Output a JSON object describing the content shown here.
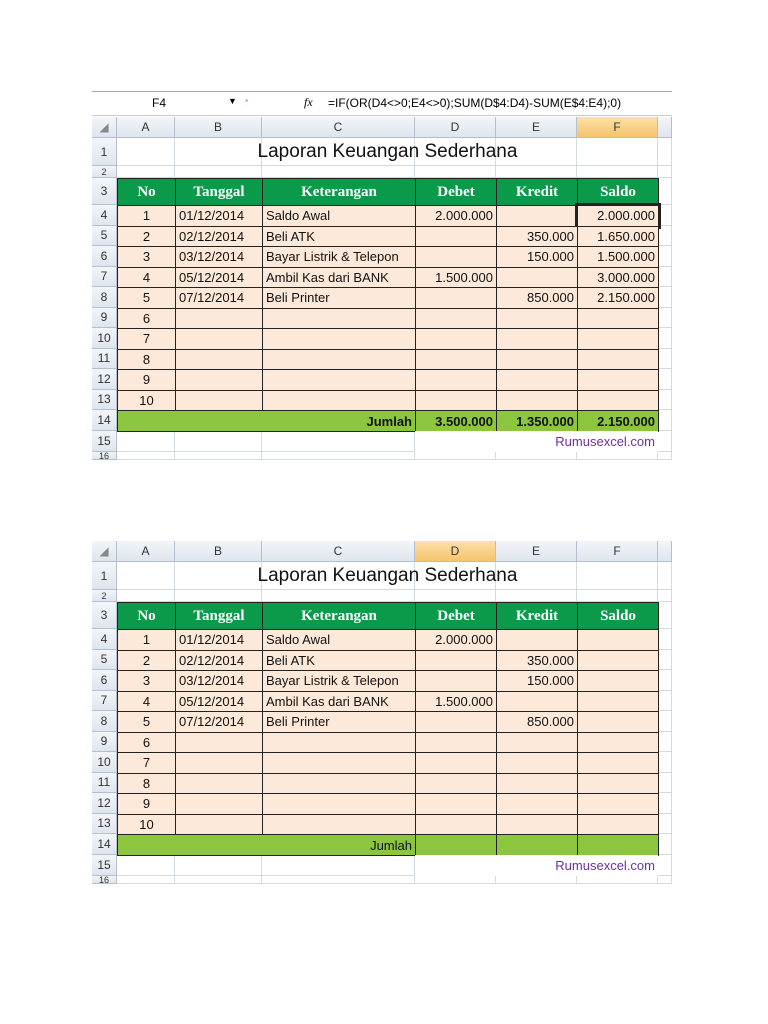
{
  "sheets": [
    {
      "formula_bar": {
        "cell": "F4",
        "fx": "fx",
        "formula": "=IF(OR(D4<>0;E4<>0);SUM(D$4:D4)-SUM(E$4:E4);0)"
      },
      "column_headers": [
        "A",
        "B",
        "C",
        "D",
        "E",
        "F"
      ],
      "row_headers": [
        "1",
        "2",
        "3",
        "4",
        "5",
        "6",
        "7",
        "8",
        "9",
        "10",
        "11",
        "12",
        "13",
        "14",
        "15",
        "16"
      ],
      "title": "Laporan Keuangan Sederhana",
      "header": [
        "No",
        "Tanggal",
        "Keterangan",
        "Debet",
        "Kredit",
        "Saldo"
      ],
      "rows": [
        {
          "no": "1",
          "date": "01/12/2014",
          "desc": "Saldo Awal",
          "debet": "2.000.000",
          "saldo": "2.000.000"
        },
        {
          "no": "2",
          "date": "02/12/2014",
          "desc": "Beli ATK",
          "kredit": "350.000",
          "saldo": "1.650.000"
        },
        {
          "no": "3",
          "date": "03/12/2014",
          "desc": "Bayar Listrik & Telepon",
          "kredit": "150.000",
          "saldo": "1.500.000"
        },
        {
          "no": "4",
          "date": "05/12/2014",
          "desc": "Ambil Kas dari BANK",
          "debet": "1.500.000",
          "saldo": "3.000.000"
        },
        {
          "no": "5",
          "date": "07/12/2014",
          "desc": "Beli Printer",
          "kredit": "850.000",
          "saldo": "2.150.000"
        },
        {
          "no": "6"
        },
        {
          "no": "7"
        },
        {
          "no": "8"
        },
        {
          "no": "9"
        },
        {
          "no": "10"
        }
      ],
      "total": {
        "label": "Jumlah",
        "debet": "3.500.000",
        "kredit": "1.350.000",
        "saldo": "2.150.000"
      },
      "credit": "Rumusexcel.com"
    },
    {
      "column_headers": [
        "A",
        "B",
        "C",
        "D",
        "E",
        "F"
      ],
      "row_headers": [
        "1",
        "2",
        "3",
        "4",
        "5",
        "6",
        "7",
        "8",
        "9",
        "10",
        "11",
        "12",
        "13",
        "14",
        "15",
        "16"
      ],
      "title": "Laporan Keuangan Sederhana",
      "header": [
        "No",
        "Tanggal",
        "Keterangan",
        "Debet",
        "Kredit",
        "Saldo"
      ],
      "rows": [
        {
          "no": "1",
          "date": "01/12/2014",
          "desc": "Saldo Awal",
          "debet": "2.000.000"
        },
        {
          "no": "2",
          "date": "02/12/2014",
          "desc": "Beli ATK",
          "kredit": "350.000"
        },
        {
          "no": "3",
          "date": "03/12/2014",
          "desc": "Bayar Listrik & Telepon",
          "kredit": "150.000"
        },
        {
          "no": "4",
          "date": "05/12/2014",
          "desc": "Ambil Kas dari BANK",
          "debet": "1.500.000"
        },
        {
          "no": "5",
          "date": "07/12/2014",
          "desc": "Beli Printer",
          "kredit": "850.000"
        },
        {
          "no": "6"
        },
        {
          "no": "7"
        },
        {
          "no": "8"
        },
        {
          "no": "9"
        },
        {
          "no": "10"
        }
      ],
      "total": {
        "label": "Jumlah"
      },
      "credit": "Rumusexcel.com"
    }
  ]
}
